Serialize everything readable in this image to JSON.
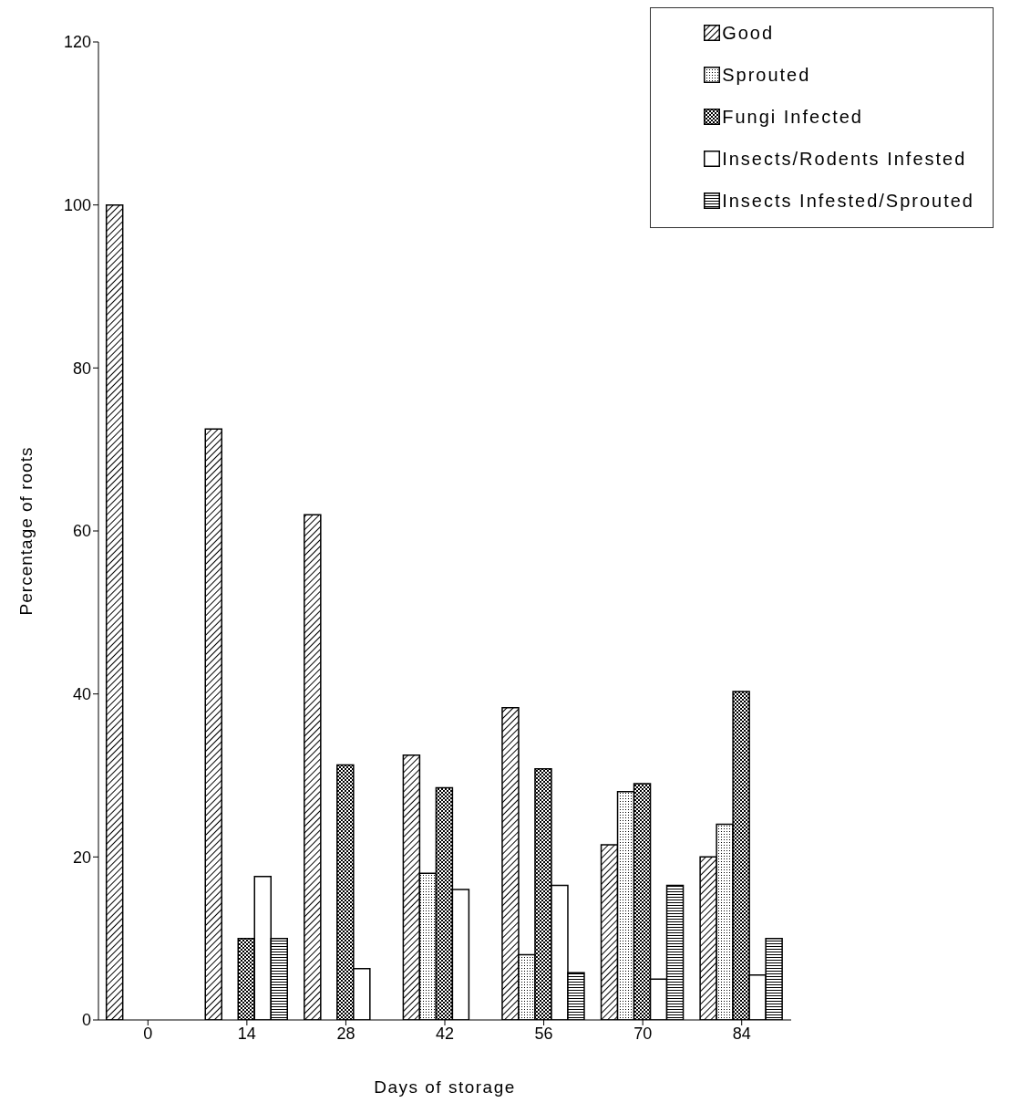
{
  "chart_data": {
    "type": "bar",
    "xlabel": "Days of storage",
    "ylabel": "Percentage of roots",
    "categories": [
      "0",
      "14",
      "28",
      "42",
      "56",
      "70",
      "84"
    ],
    "series": [
      {
        "name": "Good",
        "color": "#000000",
        "values": [
          100,
          72.5,
          62,
          32.5,
          38.3,
          21.5,
          20
        ]
      },
      {
        "name": "Sprouted",
        "color": "#000000",
        "values": [
          null,
          null,
          null,
          18,
          8,
          28,
          24
        ]
      },
      {
        "name": "Fungi Infected",
        "color": "#000000",
        "values": [
          null,
          10,
          31.3,
          28.5,
          30.8,
          29,
          40.3
        ]
      },
      {
        "name": "Insects/Rodents Infested",
        "color": "#000000",
        "values": [
          null,
          17.6,
          6.3,
          16,
          16.5,
          5,
          5.5
        ]
      },
      {
        "name": "Insects Infested/Sprouted",
        "color": "#000000",
        "values": [
          null,
          10,
          null,
          null,
          5.8,
          16.5,
          10
        ]
      }
    ],
    "ylim": [
      0,
      120
    ],
    "yticks": [
      0,
      20,
      40,
      60,
      80,
      100,
      120
    ],
    "grid": false,
    "legend": "top right"
  }
}
